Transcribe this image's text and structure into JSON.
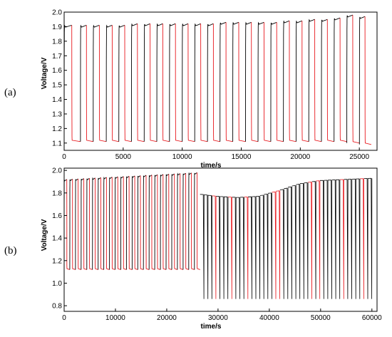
{
  "chart_data": [
    {
      "type": "line",
      "panel_label": "(a)",
      "xlabel": "time/s",
      "ylabel": "Voltage/V",
      "xlim": [
        0,
        26500
      ],
      "ylim": [
        1.05,
        2.0
      ],
      "xticks": [
        0,
        5000,
        10000,
        15000,
        20000,
        25000
      ],
      "yticks": [
        1.1,
        1.2,
        1.3,
        1.4,
        1.5,
        1.6,
        1.7,
        1.8,
        1.9,
        2.0
      ],
      "grid": false,
      "colors": {
        "charge": "#000000",
        "discharge": "#e8191e"
      },
      "series": [
        {
          "role": "cycle",
          "cycle_starts": [
            0,
            1380,
            2460,
            3570,
            4630,
            5700,
            6780,
            7850,
            8920,
            10000,
            11060,
            12140,
            13200,
            14280,
            15360,
            16420,
            17500,
            18570,
            19640,
            20720,
            21790,
            22860,
            23940,
            25010
          ],
          "charge_end": [
            1.91,
            1.91,
            1.91,
            1.91,
            1.91,
            1.92,
            1.92,
            1.92,
            1.92,
            1.92,
            1.92,
            1.92,
            1.93,
            1.93,
            1.93,
            1.93,
            1.93,
            1.94,
            1.94,
            1.95,
            1.95,
            1.96,
            1.98,
            1.97
          ],
          "discharge_level": [
            1.11,
            1.11,
            1.11,
            1.11,
            1.11,
            1.11,
            1.11,
            1.11,
            1.11,
            1.11,
            1.11,
            1.11,
            1.11,
            1.11,
            1.11,
            1.11,
            1.11,
            1.11,
            1.11,
            1.11,
            1.11,
            1.11,
            1.1,
            1.09
          ]
        }
      ]
    },
    {
      "type": "line",
      "panel_label": "(b)",
      "xlabel": "time/s",
      "ylabel": "Voltage/V",
      "xlim": [
        0,
        61000
      ],
      "ylim": [
        0.75,
        2.02
      ],
      "xticks": [
        0,
        10000,
        20000,
        30000,
        40000,
        50000,
        60000
      ],
      "yticks": [
        0.8,
        1.0,
        1.2,
        1.4,
        1.6,
        1.8,
        2.0
      ],
      "grid": false,
      "colors": {
        "charge": "#000000",
        "discharge": "#e8191e"
      },
      "series": [
        {
          "role": "cycle_phase_1",
          "x_range": [
            0,
            26500
          ],
          "cycles": 24,
          "charge_end_start": 1.92,
          "charge_end_finish": 1.98,
          "discharge_level": 1.12
        },
        {
          "role": "cycle_phase_2",
          "x_range": [
            26500,
            60000
          ],
          "cycles": 43,
          "plateau_points": [
            [
              26500,
              1.79
            ],
            [
              30000,
              1.77
            ],
            [
              34000,
              1.76
            ],
            [
              38000,
              1.77
            ],
            [
              42000,
              1.82
            ],
            [
              46000,
              1.88
            ],
            [
              50000,
              1.91
            ],
            [
              55000,
              1.92
            ],
            [
              60000,
              1.93
            ]
          ],
          "discharge_min": 0.86
        }
      ]
    }
  ]
}
